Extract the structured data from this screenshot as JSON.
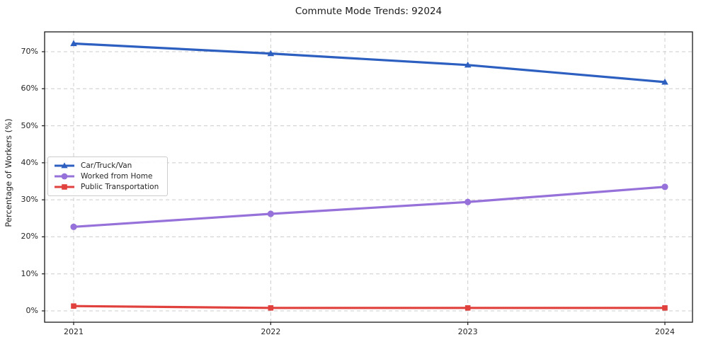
{
  "chart_data": {
    "type": "line",
    "title": "Commute Mode Trends: 92024",
    "xlabel": "",
    "ylabel": "Percentage of Workers (%)",
    "x": [
      "2021",
      "2022",
      "2023",
      "2024"
    ],
    "series": [
      {
        "name": "Car/Truck/Van",
        "color": "#2c5fc0",
        "marker": "triangle",
        "values": [
          72.2,
          69.5,
          66.4,
          61.8
        ]
      },
      {
        "name": "Worked from Home",
        "color": "#9671d9",
        "marker": "circle",
        "values": [
          22.7,
          26.2,
          29.4,
          33.5
        ]
      },
      {
        "name": "Public Transportation",
        "color": "#e0413d",
        "marker": "square",
        "values": [
          1.3,
          0.8,
          0.8,
          0.8
        ]
      }
    ],
    "ytick_labels": [
      "0%",
      "10%",
      "20%",
      "30%",
      "40%",
      "50%",
      "60%",
      "70%"
    ],
    "ytick_values": [
      0,
      10,
      20,
      30,
      40,
      50,
      60,
      70
    ],
    "ylim": [
      -3,
      75.3
    ],
    "grid": true,
    "grid_style": "dashed",
    "legend_position": "center-left",
    "colors": {
      "grid": "#cccccc",
      "spine": "#1a1a1a",
      "text": "#262626",
      "background": "#ffffff"
    }
  }
}
